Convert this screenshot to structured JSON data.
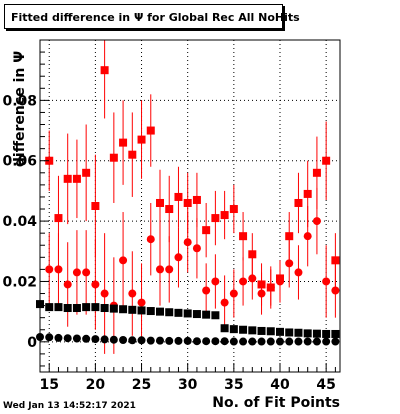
{
  "title": "Fitted difference in  Ψ  for Global Rec All NoHits",
  "timestamp": "Wed Jan 13 14:52:17 2021",
  "chart_data": {
    "type": "scatter",
    "title": "Fitted difference in  Ψ  for Global Rec All NoHits",
    "xlabel": "No. of Fit Points",
    "ylabel": "difference in  Ψ",
    "xlim": [
      14,
      46.5
    ],
    "ylim": [
      -0.01,
      0.1
    ],
    "xticks": [
      15,
      20,
      25,
      30,
      35,
      40,
      45
    ],
    "yticks": [
      0,
      0.02,
      0.04,
      0.06,
      0.08
    ],
    "ytick_labels": [
      "0",
      "0.02",
      "0.04",
      "0.06",
      "0.08"
    ],
    "grid": true,
    "series": [
      {
        "color": "#ff0000",
        "marker": "square",
        "x": [
          15,
          16,
          17,
          18,
          19,
          20,
          21,
          22,
          23,
          24,
          25,
          26,
          27,
          28,
          29,
          30,
          31,
          32,
          33,
          34,
          35,
          36,
          37,
          38,
          39,
          40,
          41,
          42,
          43,
          44,
          45,
          46
        ],
        "y": [
          0.06,
          0.041,
          0.054,
          0.054,
          0.056,
          0.045,
          0.09,
          0.061,
          0.066,
          0.062,
          0.067,
          0.07,
          0.046,
          0.044,
          0.048,
          0.046,
          0.047,
          0.037,
          0.041,
          0.042,
          0.044,
          0.035,
          0.029,
          0.019,
          0.018,
          0.021,
          0.035,
          0.046,
          0.049,
          0.056,
          0.06,
          0.027
        ],
        "err": [
          0.01,
          0.014,
          0.015,
          0.013,
          0.016,
          0.017,
          0.016,
          0.015,
          0.014,
          0.014,
          0.013,
          0.012,
          0.011,
          0.011,
          0.01,
          0.01,
          0.009,
          0.009,
          0.009,
          0.008,
          0.008,
          0.008,
          0.007,
          0.007,
          0.006,
          0.006,
          0.008,
          0.01,
          0.011,
          0.012,
          0.013,
          0.009
        ]
      },
      {
        "color": "#ff0000",
        "marker": "circle",
        "x": [
          15,
          16,
          17,
          18,
          19,
          20,
          21,
          22,
          23,
          24,
          25,
          26,
          27,
          28,
          29,
          30,
          31,
          32,
          33,
          34,
          35,
          36,
          37,
          38,
          39,
          40,
          41,
          42,
          43,
          44,
          45,
          46
        ],
        "y": [
          0.024,
          0.024,
          0.019,
          0.023,
          0.023,
          0.019,
          0.016,
          0.012,
          0.027,
          0.016,
          0.013,
          0.034,
          0.024,
          0.024,
          0.028,
          0.033,
          0.031,
          0.017,
          0.02,
          0.013,
          0.016,
          0.02,
          0.021,
          0.016,
          0.018,
          0.02,
          0.026,
          0.023,
          0.035,
          0.04,
          0.02,
          0.017
        ],
        "err": [
          0.012,
          0.012,
          0.014,
          0.014,
          0.014,
          0.015,
          0.02,
          0.016,
          0.016,
          0.014,
          0.013,
          0.012,
          0.012,
          0.011,
          0.01,
          0.01,
          0.01,
          0.009,
          0.009,
          0.009,
          0.008,
          0.008,
          0.007,
          0.007,
          0.007,
          0.007,
          0.008,
          0.009,
          0.01,
          0.011,
          0.012,
          0.009
        ]
      },
      {
        "color": "#000000",
        "marker": "square",
        "x": [
          14,
          15,
          16,
          17,
          18,
          19,
          20,
          21,
          22,
          23,
          24,
          25,
          26,
          27,
          28,
          29,
          30,
          31,
          32,
          33,
          34,
          35,
          36,
          37,
          38,
          39,
          40,
          41,
          42,
          43,
          44,
          45,
          46
        ],
        "y": [
          0.0125,
          0.0115,
          0.0115,
          0.0112,
          0.0112,
          0.0115,
          0.0115,
          0.0112,
          0.011,
          0.0108,
          0.0106,
          0.0104,
          0.0102,
          0.01,
          0.0098,
          0.0096,
          0.0094,
          0.0092,
          0.009,
          0.0088,
          0.0045,
          0.0042,
          0.004,
          0.0038,
          0.0036,
          0.0035,
          0.0033,
          0.0031,
          0.003,
          0.0028,
          0.0027,
          0.0026,
          0.0026
        ]
      },
      {
        "color": "#000000",
        "marker": "circle",
        "x": [
          14,
          15,
          16,
          17,
          18,
          19,
          20,
          21,
          22,
          23,
          24,
          25,
          26,
          27,
          28,
          29,
          30,
          31,
          32,
          33,
          34,
          35,
          36,
          37,
          38,
          39,
          40,
          41,
          42,
          43,
          44,
          45,
          46
        ],
        "y": [
          0.0016,
          0.0015,
          0.0013,
          0.0012,
          0.0011,
          0.001,
          0.0009,
          0.0008,
          0.0007,
          0.0006,
          0.0005,
          0.0005,
          0.0004,
          0.0004,
          0.0003,
          0.0003,
          0.0003,
          0.0002,
          0.0002,
          0.0002,
          0.0002,
          0.0001,
          0.0001,
          0.0001,
          0.0001,
          0.0001,
          0.0001,
          0.0001,
          0.0001,
          0.0001,
          0.0001,
          0.0001,
          0.0001
        ]
      }
    ]
  }
}
